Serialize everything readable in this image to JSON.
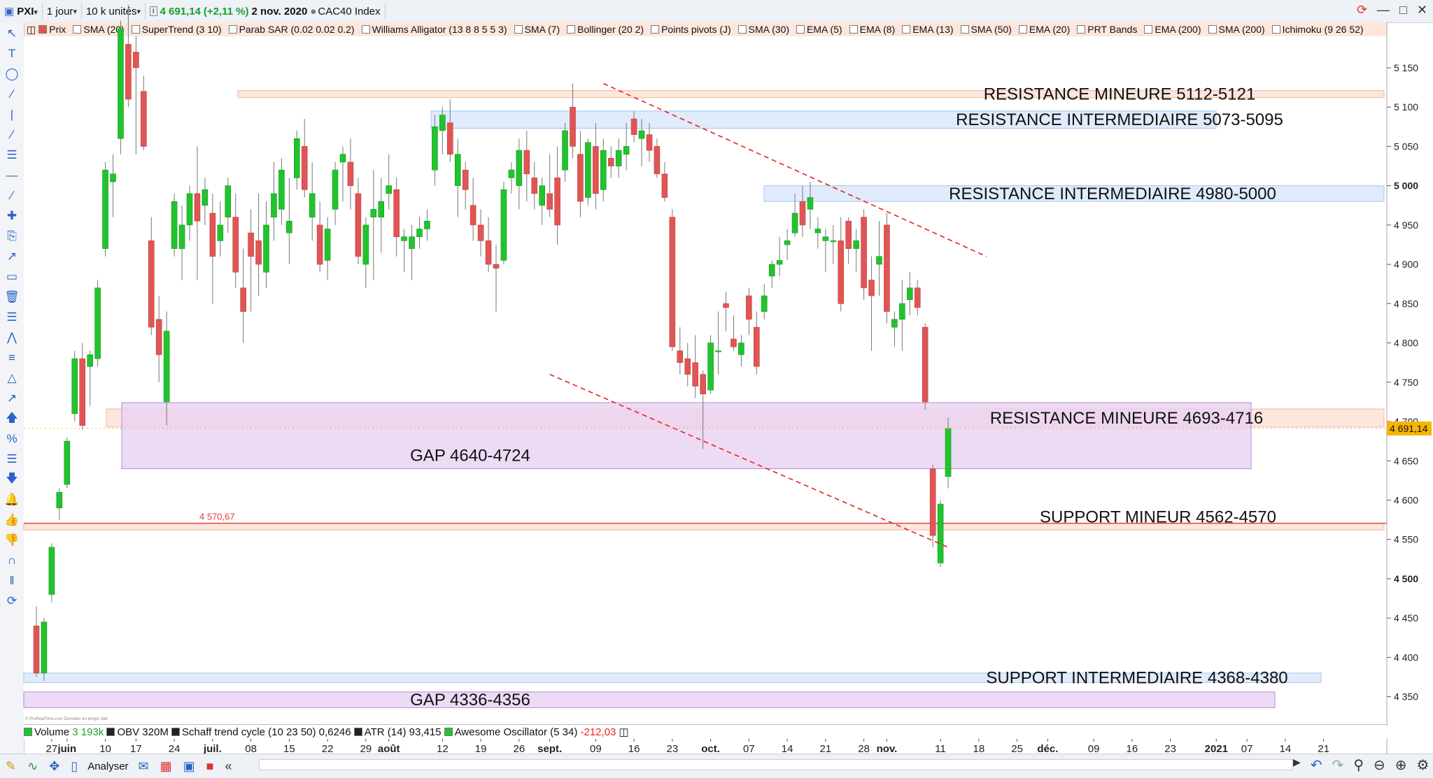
{
  "toolbar": {
    "symbol": "PXI",
    "period": "1 jour",
    "units": "10 k unités",
    "info_icon": "info-icon",
    "price": "4 691,14",
    "change": "(+2,11 %)",
    "date": "2 nov. 2020",
    "instrument": "CAC40 Index"
  },
  "indicators": [
    "Prix",
    "SMA (20)",
    "SuperTrend (3 10)",
    "Parab SAR (0.02 0.02 0.2)",
    "Williams Alligator (13 8 8 5 5 3)",
    "SMA (7)",
    "Bollinger (20 2)",
    "Points pivots (J)",
    "SMA (30)",
    "EMA (5)",
    "EMA (8)",
    "EMA (13)",
    "SMA (50)",
    "EMA (20)",
    "PRT Bands",
    "EMA (200)",
    "SMA (200)",
    "Ichimoku (9 26 52)"
  ],
  "lower_panel": {
    "volume_label": "Volume",
    "volume_value": "3 193k",
    "obv_label": "OBV",
    "obv_value": "320M",
    "schaff_label": "Schaff trend cycle (10 23 50)",
    "schaff_value": "0,6246",
    "atr_label": "ATR (14)",
    "atr_value": "93,415",
    "ao_label": "Awesome Oscillator (5 34)",
    "ao_value": "-212,03",
    "credit": "© ProRealTime.com  Données en temps réel"
  },
  "bottom_bar": {
    "analyser": "Analyser"
  },
  "colors": {
    "up": "#22c32e",
    "down": "#e05555",
    "resist_minor": "#fde3d8",
    "resist_inter": "#dde9fb",
    "gap": "#e8d2f2",
    "trend": "#e82020",
    "support_line": "#e23a3a"
  },
  "chart_data": {
    "type": "candlestick",
    "instrument": "CAC40 Index",
    "ylim": [
      4315,
      5190
    ],
    "y_ticks": [
      4350,
      4400,
      4450,
      4500,
      4550,
      4600,
      4650,
      4700,
      4750,
      4800,
      4850,
      4900,
      4950,
      5000,
      5050,
      5100,
      5150
    ],
    "y_tick_labels": [
      "4 350",
      "4 400",
      "4 450",
      "4 500",
      "4 550",
      "4 600",
      "4 650",
      "4 700",
      "4 750",
      "4 800",
      "4 850",
      "4 900",
      "4 950",
      "5 000",
      "5 050",
      "5 100",
      "5 150"
    ],
    "bold_ticks": [
      4500,
      5000
    ],
    "last_price": 4691.14,
    "last_price_label": "4 691,14",
    "x_labels": [
      {
        "i": 2,
        "text": "27"
      },
      {
        "i": 4,
        "text": "juin"
      },
      {
        "i": 9,
        "text": "10"
      },
      {
        "i": 13,
        "text": "17"
      },
      {
        "i": 18,
        "text": "24"
      },
      {
        "i": 23,
        "text": "juil."
      },
      {
        "i": 28,
        "text": "08"
      },
      {
        "i": 33,
        "text": "15"
      },
      {
        "i": 38,
        "text": "22"
      },
      {
        "i": 43,
        "text": "29"
      },
      {
        "i": 46,
        "text": "août"
      },
      {
        "i": 53,
        "text": "12"
      },
      {
        "i": 58,
        "text": "19"
      },
      {
        "i": 63,
        "text": "26"
      },
      {
        "i": 67,
        "text": "sept."
      },
      {
        "i": 73,
        "text": "09"
      },
      {
        "i": 78,
        "text": "16"
      },
      {
        "i": 83,
        "text": "23"
      },
      {
        "i": 88,
        "text": "oct."
      },
      {
        "i": 93,
        "text": "07"
      },
      {
        "i": 98,
        "text": "14"
      },
      {
        "i": 103,
        "text": "21"
      },
      {
        "i": 108,
        "text": "28"
      },
      {
        "i": 111,
        "text": "nov."
      },
      {
        "i": 118,
        "text": "11"
      },
      {
        "i": 123,
        "text": "18"
      },
      {
        "i": 128,
        "text": "25"
      },
      {
        "i": 132,
        "text": "déc."
      },
      {
        "i": 138,
        "text": "09"
      },
      {
        "i": 143,
        "text": "16"
      },
      {
        "i": 148,
        "text": "23"
      },
      {
        "i": 154,
        "text": "2021"
      },
      {
        "i": 158,
        "text": "07"
      },
      {
        "i": 163,
        "text": "14"
      },
      {
        "i": 168,
        "text": "21"
      }
    ],
    "candles": [
      {
        "o": 4440,
        "h": 4465,
        "l": 4375,
        "c": 4380
      },
      {
        "o": 4380,
        "h": 4450,
        "l": 4370,
        "c": 4445
      },
      {
        "o": 4480,
        "h": 4545,
        "l": 4470,
        "c": 4540
      },
      {
        "o": 4590,
        "h": 4615,
        "l": 4575,
        "c": 4610
      },
      {
        "o": 4620,
        "h": 4680,
        "l": 4615,
        "c": 4675
      },
      {
        "o": 4710,
        "h": 4790,
        "l": 4700,
        "c": 4780
      },
      {
        "o": 4780,
        "h": 4800,
        "l": 4690,
        "c": 4695
      },
      {
        "o": 4770,
        "h": 4790,
        "l": 4720,
        "c": 4785
      },
      {
        "o": 4780,
        "h": 4880,
        "l": 4770,
        "c": 4870
      },
      {
        "o": 4920,
        "h": 5030,
        "l": 4910,
        "c": 5020
      },
      {
        "o": 5005,
        "h": 5040,
        "l": 4960,
        "c": 5015
      },
      {
        "o": 5060,
        "h": 5210,
        "l": 5040,
        "c": 5200
      },
      {
        "o": 5180,
        "h": 5230,
        "l": 5100,
        "c": 5110
      },
      {
        "o": 5170,
        "h": 5190,
        "l": 5040,
        "c": 5150
      },
      {
        "o": 5120,
        "h": 5140,
        "l": 5045,
        "c": 5050
      },
      {
        "o": 4930,
        "h": 4960,
        "l": 4810,
        "c": 4820
      },
      {
        "o": 4830,
        "h": 4860,
        "l": 4750,
        "c": 4785
      },
      {
        "o": 4725,
        "h": 4840,
        "l": 4695,
        "c": 4815
      },
      {
        "o": 4920,
        "h": 4990,
        "l": 4910,
        "c": 4980
      },
      {
        "o": 4920,
        "h": 4975,
        "l": 4880,
        "c": 4950
      },
      {
        "o": 4950,
        "h": 5000,
        "l": 4930,
        "c": 4990
      },
      {
        "o": 4990,
        "h": 5050,
        "l": 4880,
        "c": 4955
      },
      {
        "o": 4975,
        "h": 5010,
        "l": 4950,
        "c": 4995
      },
      {
        "o": 4965,
        "h": 4990,
        "l": 4850,
        "c": 4910
      },
      {
        "o": 4930,
        "h": 4980,
        "l": 4910,
        "c": 4950
      },
      {
        "o": 4960,
        "h": 5010,
        "l": 4940,
        "c": 5000
      },
      {
        "o": 4960,
        "h": 4990,
        "l": 4870,
        "c": 4890
      },
      {
        "o": 4870,
        "h": 4920,
        "l": 4800,
        "c": 4840
      },
      {
        "o": 4940,
        "h": 4970,
        "l": 4840,
        "c": 4910
      },
      {
        "o": 4930,
        "h": 4990,
        "l": 4860,
        "c": 4900
      },
      {
        "o": 4890,
        "h": 4980,
        "l": 4870,
        "c": 4950
      },
      {
        "o": 4960,
        "h": 5030,
        "l": 4930,
        "c": 4990
      },
      {
        "o": 4970,
        "h": 5035,
        "l": 4950,
        "c": 5020
      },
      {
        "o": 4940,
        "h": 5010,
        "l": 4900,
        "c": 4955
      },
      {
        "o": 5010,
        "h": 5070,
        "l": 4995,
        "c": 5060
      },
      {
        "o": 5050,
        "h": 5085,
        "l": 4985,
        "c": 4995
      },
      {
        "o": 4960,
        "h": 5030,
        "l": 4930,
        "c": 4990
      },
      {
        "o": 4950,
        "h": 4980,
        "l": 4890,
        "c": 4900
      },
      {
        "o": 4905,
        "h": 4960,
        "l": 4880,
        "c": 4945
      },
      {
        "o": 4970,
        "h": 5030,
        "l": 4950,
        "c": 5020
      },
      {
        "o": 5030,
        "h": 5050,
        "l": 4980,
        "c": 5040
      },
      {
        "o": 5030,
        "h": 5060,
        "l": 4970,
        "c": 5000
      },
      {
        "o": 4990,
        "h": 5010,
        "l": 4900,
        "c": 4910
      },
      {
        "o": 4900,
        "h": 4960,
        "l": 4870,
        "c": 4950
      },
      {
        "o": 4960,
        "h": 5020,
        "l": 4880,
        "c": 4970
      },
      {
        "o": 4960,
        "h": 5010,
        "l": 4915,
        "c": 4980
      },
      {
        "o": 4990,
        "h": 5040,
        "l": 4970,
        "c": 5000
      },
      {
        "o": 4995,
        "h": 5010,
        "l": 4910,
        "c": 4935
      },
      {
        "o": 4930,
        "h": 4945,
        "l": 4890,
        "c": 4935
      },
      {
        "o": 4920,
        "h": 4950,
        "l": 4880,
        "c": 4935
      },
      {
        "o": 4935,
        "h": 4960,
        "l": 4920,
        "c": 4945
      },
      {
        "o": 4945,
        "h": 4970,
        "l": 4930,
        "c": 4955
      },
      {
        "o": 5020,
        "h": 5090,
        "l": 5000,
        "c": 5075
      },
      {
        "o": 5070,
        "h": 5100,
        "l": 5040,
        "c": 5090
      },
      {
        "o": 5080,
        "h": 5110,
        "l": 5030,
        "c": 5040
      },
      {
        "o": 5000,
        "h": 5060,
        "l": 4960,
        "c": 5040
      },
      {
        "o": 5020,
        "h": 5030,
        "l": 4970,
        "c": 4995
      },
      {
        "o": 4975,
        "h": 5010,
        "l": 4930,
        "c": 4950
      },
      {
        "o": 4950,
        "h": 4970,
        "l": 4910,
        "c": 4930
      },
      {
        "o": 4930,
        "h": 4960,
        "l": 4890,
        "c": 4900
      },
      {
        "o": 4900,
        "h": 4925,
        "l": 4840,
        "c": 4895
      },
      {
        "o": 4905,
        "h": 5005,
        "l": 4900,
        "c": 4995
      },
      {
        "o": 5010,
        "h": 5030,
        "l": 4990,
        "c": 5020
      },
      {
        "o": 5000,
        "h": 5060,
        "l": 4970,
        "c": 5045
      },
      {
        "o": 5045,
        "h": 5070,
        "l": 4980,
        "c": 5015
      },
      {
        "o": 5010,
        "h": 5030,
        "l": 4970,
        "c": 4990
      },
      {
        "o": 4975,
        "h": 5010,
        "l": 4950,
        "c": 5000
      },
      {
        "o": 4990,
        "h": 5040,
        "l": 4960,
        "c": 4970
      },
      {
        "o": 5010,
        "h": 5050,
        "l": 4925,
        "c": 4950
      },
      {
        "o": 5020,
        "h": 5080,
        "l": 5005,
        "c": 5070
      },
      {
        "o": 5100,
        "h": 5130,
        "l": 5035,
        "c": 5050
      },
      {
        "o": 5040,
        "h": 5070,
        "l": 4960,
        "c": 4980
      },
      {
        "o": 4985,
        "h": 5060,
        "l": 4975,
        "c": 5055
      },
      {
        "o": 5050,
        "h": 5080,
        "l": 4970,
        "c": 4990
      },
      {
        "o": 4995,
        "h": 5060,
        "l": 4980,
        "c": 5045
      },
      {
        "o": 5035,
        "h": 5050,
        "l": 5010,
        "c": 5025
      },
      {
        "o": 5025,
        "h": 5060,
        "l": 5010,
        "c": 5045
      },
      {
        "o": 5040,
        "h": 5080,
        "l": 5020,
        "c": 5050
      },
      {
        "o": 5085,
        "h": 5095,
        "l": 5055,
        "c": 5065
      },
      {
        "o": 5060,
        "h": 5085,
        "l": 5025,
        "c": 5070
      },
      {
        "o": 5065,
        "h": 5080,
        "l": 5030,
        "c": 5045
      },
      {
        "o": 5050,
        "h": 5060,
        "l": 5010,
        "c": 5015
      },
      {
        "o": 5015,
        "h": 5030,
        "l": 4980,
        "c": 4985
      },
      {
        "o": 4960,
        "h": 4970,
        "l": 4790,
        "c": 4795
      },
      {
        "o": 4790,
        "h": 4820,
        "l": 4760,
        "c": 4775
      },
      {
        "o": 4780,
        "h": 4800,
        "l": 4745,
        "c": 4760
      },
      {
        "o": 4775,
        "h": 4810,
        "l": 4730,
        "c": 4745
      },
      {
        "o": 4760,
        "h": 4765,
        "l": 4665,
        "c": 4735
      },
      {
        "o": 4740,
        "h": 4810,
        "l": 4735,
        "c": 4800
      },
      {
        "o": 4790,
        "h": 4840,
        "l": 4760,
        "c": 4790
      },
      {
        "o": 4850,
        "h": 4865,
        "l": 4815,
        "c": 4845
      },
      {
        "o": 4805,
        "h": 4835,
        "l": 4790,
        "c": 4795
      },
      {
        "o": 4785,
        "h": 4810,
        "l": 4770,
        "c": 4800
      },
      {
        "o": 4860,
        "h": 4870,
        "l": 4810,
        "c": 4830
      },
      {
        "o": 4820,
        "h": 4840,
        "l": 4760,
        "c": 4770
      },
      {
        "o": 4840,
        "h": 4875,
        "l": 4830,
        "c": 4860
      },
      {
        "o": 4885,
        "h": 4905,
        "l": 4870,
        "c": 4900
      },
      {
        "o": 4900,
        "h": 4935,
        "l": 4885,
        "c": 4905
      },
      {
        "o": 4925,
        "h": 4945,
        "l": 4905,
        "c": 4930
      },
      {
        "o": 4940,
        "h": 4990,
        "l": 4935,
        "c": 4965
      },
      {
        "o": 4980,
        "h": 5000,
        "l": 4935,
        "c": 4950
      },
      {
        "o": 4970,
        "h": 5005,
        "l": 4945,
        "c": 4985
      },
      {
        "o": 4940,
        "h": 4960,
        "l": 4920,
        "c": 4945
      },
      {
        "o": 4930,
        "h": 4945,
        "l": 4890,
        "c": 4935
      },
      {
        "o": 4930,
        "h": 4950,
        "l": 4900,
        "c": 4930
      },
      {
        "o": 4930,
        "h": 4960,
        "l": 4840,
        "c": 4850
      },
      {
        "o": 4955,
        "h": 4960,
        "l": 4900,
        "c": 4920
      },
      {
        "o": 4920,
        "h": 4945,
        "l": 4890,
        "c": 4930
      },
      {
        "o": 4960,
        "h": 4970,
        "l": 4855,
        "c": 4870
      },
      {
        "o": 4880,
        "h": 4910,
        "l": 4790,
        "c": 4860
      },
      {
        "o": 4900,
        "h": 4955,
        "l": 4860,
        "c": 4910
      },
      {
        "o": 4950,
        "h": 4965,
        "l": 4825,
        "c": 4840
      },
      {
        "o": 4820,
        "h": 4840,
        "l": 4795,
        "c": 4830
      },
      {
        "o": 4830,
        "h": 4880,
        "l": 4790,
        "c": 4850
      },
      {
        "o": 4855,
        "h": 4890,
        "l": 4835,
        "c": 4870
      },
      {
        "o": 4870,
        "h": 4880,
        "l": 4835,
        "c": 4845
      },
      {
        "o": 4820,
        "h": 4825,
        "l": 4715,
        "c": 4725
      },
      {
        "o": 4640,
        "h": 4645,
        "l": 4540,
        "c": 4555
      },
      {
        "o": 4520,
        "h": 4600,
        "l": 4515,
        "c": 4595
      },
      {
        "o": 4630,
        "h": 4705,
        "l": 4615,
        "c": 4691.14
      }
    ],
    "zones": [
      {
        "kind": "resist_minor",
        "y1": 5112,
        "y2": 5121,
        "i1": 54,
        "i2": "end",
        "label": "RESISTANCE MINEURE 5112-5121"
      },
      {
        "kind": "resist_inter",
        "y1": 5073,
        "y2": 5095,
        "i1": 71,
        "i2": "end",
        "label": "RESISTANCE INTERMEDIAIRE 5073-5095"
      },
      {
        "kind": "resist_inter",
        "y1": 4980,
        "y2": 5000,
        "i1": 99,
        "i2": "end",
        "label": "RESISTANCE INTERMEDIAIRE 4980-5000"
      },
      {
        "kind": "resist_minor",
        "y1": 4693,
        "y2": 4716,
        "i1": 14,
        "i2": "end",
        "label": "RESISTANCE MINEURE 4693-4716"
      },
      {
        "kind": "gap",
        "y1": 4640,
        "y2": 4724,
        "i1": 15,
        "i2": "end",
        "label": "GAP 4640-4724"
      },
      {
        "kind": "support_minor",
        "y1": 4562,
        "y2": 4570,
        "i1": 0,
        "i2": "end",
        "label": "SUPPORT MINEUR 4562-4570"
      },
      {
        "kind": "support_inter",
        "y1": 4368,
        "y2": 4380,
        "i1": 0,
        "i2": "end",
        "label": "SUPPORT INTERMEDIAIRE 4368-4380"
      },
      {
        "kind": "gap",
        "y1": 4336,
        "y2": 4356,
        "i1": 0,
        "i2": "end",
        "label": "GAP 4336-4356"
      }
    ],
    "support_line": {
      "value": 4570.67,
      "label": "4 570,67"
    },
    "trendlines": [
      {
        "i1": 74,
        "v1": 5130,
        "i2": 124,
        "v2": 4910
      },
      {
        "i1": 67,
        "v1": 4760,
        "i2": 119,
        "v2": 4540
      }
    ]
  }
}
